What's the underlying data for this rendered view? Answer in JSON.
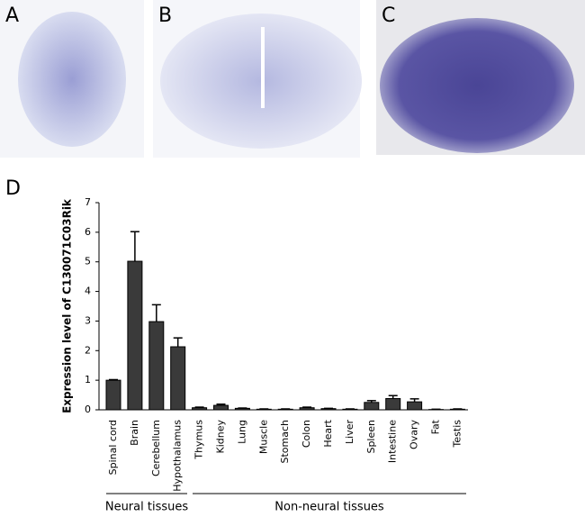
{
  "panels": [
    "A",
    "B",
    "C"
  ],
  "chart_data": {
    "type": "bar",
    "panel": "D",
    "y_label": "Expression level of C130071C03Rik",
    "categories": [
      "Spinal cord",
      "Brain",
      "Cerebellum",
      "Hypothalamus",
      "Thymus",
      "Kidney",
      "Lung",
      "Muscle",
      "Stomach",
      "Colon",
      "Heart",
      "Liver",
      "Spleen",
      "Intestine",
      "Ovary",
      "Fat",
      "Testis"
    ],
    "values": [
      1.0,
      5.02,
      2.98,
      2.13,
      0.07,
      0.15,
      0.05,
      0.02,
      0.02,
      0.07,
      0.04,
      0.02,
      0.25,
      0.38,
      0.27,
      0.01,
      0.02
    ],
    "errors": [
      0.02,
      1.0,
      0.57,
      0.3,
      0.02,
      0.04,
      0.01,
      0.01,
      0.01,
      0.02,
      0.01,
      0.01,
      0.06,
      0.1,
      0.1,
      0.01,
      0.01
    ],
    "color": "#3a3a3a",
    "ylim": [
      0,
      7
    ],
    "yticks": [
      0,
      1,
      2,
      3,
      4,
      5,
      6,
      7
    ],
    "groups": [
      "Neural tissues",
      "Non-neural tissues"
    ]
  }
}
